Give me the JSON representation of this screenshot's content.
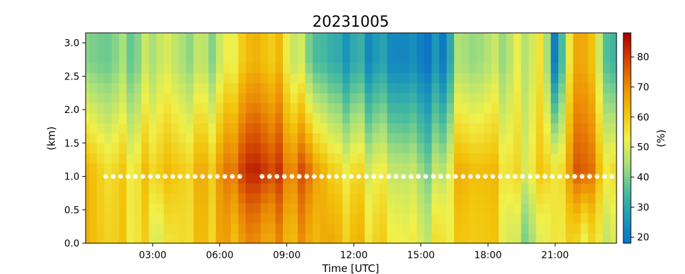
{
  "chart_data": {
    "type": "heatmap",
    "title": "20231005",
    "xlabel": "Time [UTC]",
    "ylabel": "(km)",
    "colorbar_label": "(%)",
    "xlim": [
      0,
      23.75
    ],
    "ylim": [
      0,
      3.15
    ],
    "x_ticks": [
      {
        "value": 3,
        "label": "03:00"
      },
      {
        "value": 6,
        "label": "06:00"
      },
      {
        "value": 9,
        "label": "09:00"
      },
      {
        "value": 12,
        "label": "12:00"
      },
      {
        "value": 15,
        "label": "15:00"
      },
      {
        "value": 18,
        "label": "18:00"
      },
      {
        "value": 21,
        "label": "21:00"
      }
    ],
    "y_ticks": [
      {
        "value": 0.0,
        "label": "0.0"
      },
      {
        "value": 0.5,
        "label": "0.5"
      },
      {
        "value": 1.0,
        "label": "1.0"
      },
      {
        "value": 1.5,
        "label": "1.5"
      },
      {
        "value": 2.0,
        "label": "2.0"
      },
      {
        "value": 2.5,
        "label": "2.5"
      },
      {
        "value": 3.0,
        "label": "3.0"
      }
    ],
    "colorbar": {
      "vmin": 18,
      "vmax": 88,
      "ticks": [
        {
          "value": 20,
          "label": "20"
        },
        {
          "value": 30,
          "label": "30"
        },
        {
          "value": 40,
          "label": "40"
        },
        {
          "value": 50,
          "label": "50"
        },
        {
          "value": 60,
          "label": "60"
        },
        {
          "value": 70,
          "label": "70"
        },
        {
          "value": 80,
          "label": "80"
        }
      ],
      "colors": [
        "#0a72c4",
        "#1e9ab8",
        "#4fbf9a",
        "#a9e07a",
        "#f0f04a",
        "#f2c20a",
        "#eb8a06",
        "#d24404",
        "#a60000"
      ]
    },
    "time_step_h": 0.333,
    "height_step_km": 0.15,
    "column_profiles_pct": [
      {
        "x": 0.0,
        "low": 62,
        "mid": 62,
        "up": 38
      },
      {
        "x": 1.0,
        "low": 60,
        "mid": 58,
        "up": 40
      },
      {
        "x": 2.5,
        "low": 56,
        "mid": 57,
        "up": 42
      },
      {
        "x": 3.3,
        "low": 52,
        "mid": 62,
        "up": 50
      },
      {
        "x": 4.5,
        "low": 58,
        "mid": 60,
        "up": 44
      },
      {
        "x": 6.0,
        "low": 64,
        "mid": 66,
        "up": 46
      },
      {
        "x": 6.8,
        "low": 66,
        "mid": 78,
        "up": 58
      },
      {
        "x": 7.3,
        "low": 70,
        "mid": 82,
        "up": 62
      },
      {
        "x": 8.0,
        "low": 68,
        "mid": 83,
        "up": 64
      },
      {
        "x": 9.0,
        "low": 66,
        "mid": 74,
        "up": 56
      },
      {
        "x": 10.0,
        "low": 66,
        "mid": 74,
        "up": 40
      },
      {
        "x": 11.0,
        "low": 64,
        "mid": 58,
        "up": 30
      },
      {
        "x": 12.5,
        "low": 60,
        "mid": 54,
        "up": 28
      },
      {
        "x": 14.5,
        "low": 52,
        "mid": 46,
        "up": 22
      },
      {
        "x": 15.5,
        "low": 50,
        "mid": 42,
        "up": 22
      },
      {
        "x": 16.0,
        "low": 56,
        "mid": 46,
        "up": 20
      },
      {
        "x": 16.5,
        "low": 58,
        "mid": 62,
        "up": 42
      },
      {
        "x": 17.5,
        "low": 62,
        "mid": 64,
        "up": 44
      },
      {
        "x": 18.5,
        "low": 58,
        "mid": 60,
        "up": 46
      },
      {
        "x": 19.5,
        "low": 42,
        "mid": 52,
        "up": 48
      },
      {
        "x": 20.5,
        "low": 50,
        "mid": 60,
        "up": 54
      },
      {
        "x": 21.0,
        "low": 56,
        "mid": 56,
        "up": 20
      },
      {
        "x": 21.5,
        "low": 56,
        "mid": 60,
        "up": 46
      },
      {
        "x": 22.2,
        "low": 58,
        "mid": 84,
        "up": 74
      },
      {
        "x": 23.0,
        "low": 52,
        "mid": 60,
        "up": 46
      },
      {
        "x": 23.75,
        "low": 50,
        "mid": 56,
        "up": 30
      }
    ],
    "marker_height_km": 1.0,
    "marker_color": "#ffffff",
    "marker_gaps": [
      [
        7.0,
        7.6
      ]
    ]
  }
}
